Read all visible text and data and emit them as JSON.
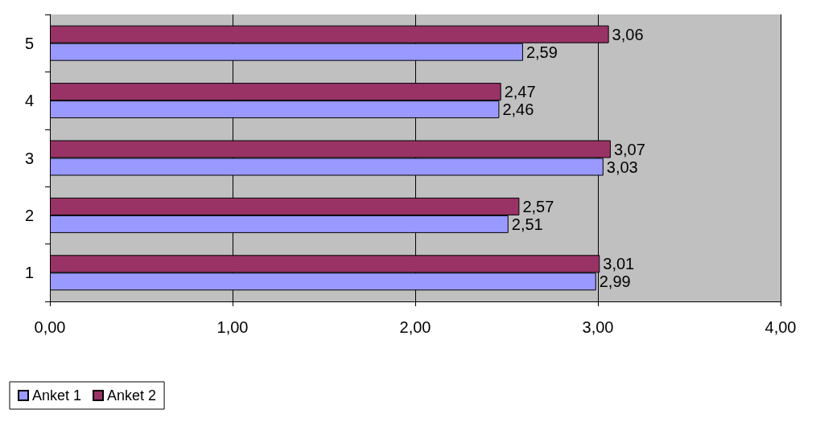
{
  "chart_data": {
    "type": "bar",
    "orientation": "horizontal",
    "categories": [
      "5",
      "4",
      "3",
      "2",
      "1"
    ],
    "series": [
      {
        "name": "Anket 1",
        "color": "#9999ff",
        "values": [
          2.59,
          2.46,
          3.03,
          2.51,
          2.99
        ],
        "value_labels": [
          "2,59",
          "2,46",
          "3,03",
          "2,51",
          "2,99"
        ]
      },
      {
        "name": "Anket 2",
        "color": "#993366",
        "values": [
          3.06,
          2.47,
          3.07,
          2.57,
          3.01
        ],
        "value_labels": [
          "3,06",
          "2,47",
          "3,07",
          "2,57",
          "3,01"
        ]
      }
    ],
    "xlim": [
      0,
      4
    ],
    "xticks": [
      {
        "value": 0,
        "label": "0,00"
      },
      {
        "value": 1,
        "label": "1,00"
      },
      {
        "value": 2,
        "label": "2,00"
      },
      {
        "value": 3,
        "label": "3,00"
      },
      {
        "value": 4,
        "label": "4,00"
      }
    ],
    "grid": "x",
    "legend": "bottom left"
  }
}
